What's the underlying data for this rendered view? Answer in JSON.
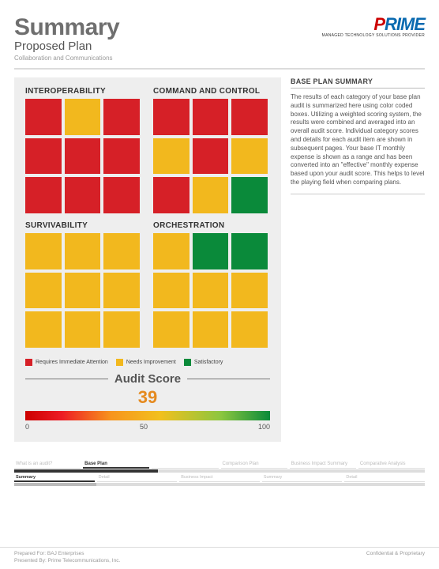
{
  "header": {
    "title": "Summary",
    "subtitle": "Proposed Plan",
    "subsub": "Collaboration and Communications",
    "logo_text_1": "P",
    "logo_text_2": "RIME",
    "logo_tagline": "MANAGED TECHNOLOGY SOLUTIONS PROVIDER"
  },
  "colors": {
    "red": "#d62027",
    "yellow": "#f2b81e",
    "green": "#0a8a3a",
    "panel_bg": "#eeeeee"
  },
  "categories": [
    {
      "title": "INTEROPERABILITY",
      "boxes": [
        "red",
        "yellow",
        "red",
        "red",
        "red",
        "red",
        "red",
        "red",
        "red"
      ]
    },
    {
      "title": "COMMAND AND CONTROL",
      "boxes": [
        "red",
        "red",
        "red",
        "yellow",
        "red",
        "yellow",
        "red",
        "yellow",
        "green"
      ]
    },
    {
      "title": "SURVIVABILITY",
      "boxes": [
        "yellow",
        "yellow",
        "yellow",
        "yellow",
        "yellow",
        "yellow",
        "yellow",
        "yellow",
        "yellow"
      ]
    },
    {
      "title": "ORCHESTRATION",
      "boxes": [
        "yellow",
        "green",
        "green",
        "yellow",
        "yellow",
        "yellow",
        "yellow",
        "yellow",
        "yellow"
      ]
    }
  ],
  "legend": [
    {
      "color": "red",
      "label": "Requires Immediate Attention"
    },
    {
      "color": "yellow",
      "label": "Needs Improvement"
    },
    {
      "color": "green",
      "label": "Satisfactory"
    }
  ],
  "audit": {
    "label": "Audit Score",
    "value": "39",
    "value_color": "#e58a1f",
    "scale": [
      "0",
      "50",
      "100"
    ]
  },
  "sidebar": {
    "title": "BASE PLAN SUMMARY",
    "text": "The results of each category of your base plan audit is summarized here using color coded boxes. Utilizing a weighted scoring system, the results were combined and averaged into an overall audit score. Individual category scores and details for each audit item are shown in subsequent pages. Your base IT monthly expense is shown as a range and has been converted into an \"effective\" monthly expense based upon your audit score. This helps to level the playing field when comparing plans."
  },
  "nav": {
    "tabs": [
      "What is an audit?",
      "Base Plan",
      "",
      "Comparison Plan",
      "Business Impact Summary",
      "Comparative Analysis"
    ],
    "active_index": 1,
    "subtabs": [
      "Summary",
      "Detail",
      "Business Impact",
      "Summary",
      "Detail"
    ],
    "sub_active_index": 0
  },
  "footer": {
    "line1": "Prepared For: BAJ Enterprises",
    "line2": "Presented By: Prime Telecommunications, Inc.",
    "right": "Confidential & Proprietary"
  }
}
